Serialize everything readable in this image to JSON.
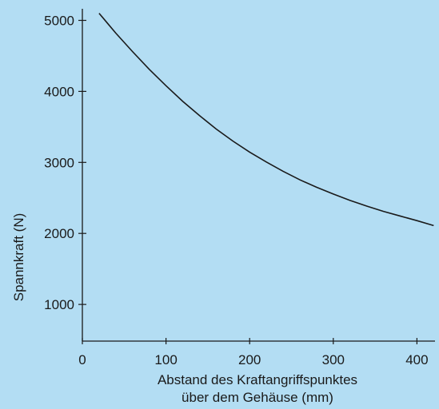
{
  "chart_data": {
    "type": "line",
    "background": "#b3ddf3",
    "line_color": "#1a1a1a",
    "title": "",
    "xlabel_lines": [
      "Abstand des Kraftangriffspunktes",
      "über dem Gehäuse (mm)"
    ],
    "ylabel": "Spannkraft (N)",
    "xlim": [
      0,
      420
    ],
    "ylim": [
      0,
      5150
    ],
    "x_ticks": [
      0,
      100,
      200,
      300,
      400
    ],
    "x_tick_labels": [
      "0",
      "100",
      "200",
      "300",
      "400"
    ],
    "y_ticks": [
      1000,
      2000,
      3000,
      4000,
      5000
    ],
    "y_tick_labels": [
      "1000",
      "2000",
      "3000",
      "4000",
      "5000"
    ],
    "grid": false,
    "series": [
      {
        "x": [
          20,
          30,
          40,
          60,
          80,
          100,
          120,
          140,
          160,
          180,
          200,
          220,
          240,
          260,
          280,
          300,
          320,
          340,
          360,
          380,
          400,
          420
        ],
        "values": [
          5100,
          4960,
          4820,
          4560,
          4310,
          4080,
          3860,
          3660,
          3470,
          3300,
          3145,
          3005,
          2875,
          2755,
          2650,
          2555,
          2465,
          2385,
          2310,
          2245,
          2180,
          2110
        ]
      }
    ]
  }
}
